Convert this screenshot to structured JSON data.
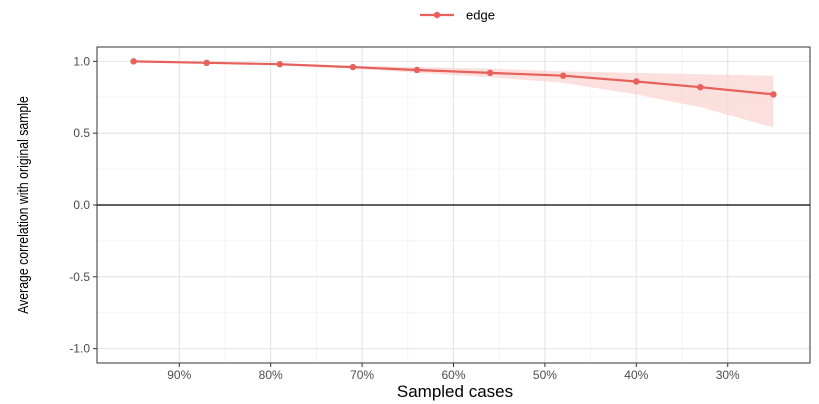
{
  "chart_data": {
    "type": "line",
    "xlabel": "Sampled cases",
    "ylabel": "Average correlation with original sample",
    "x_ticks": [
      "90%",
      "80%",
      "70%",
      "60%",
      "50%",
      "40%",
      "30%"
    ],
    "x_tick_values": [
      0.9,
      0.8,
      0.7,
      0.6,
      0.5,
      0.4,
      0.3
    ],
    "y_ticks": [
      "-1.0",
      "-0.5",
      "0.0",
      "0.5",
      "1.0"
    ],
    "y_tick_values": [
      -1.0,
      -0.5,
      0.0,
      0.5,
      1.0
    ],
    "xlim": [
      0.99,
      0.21
    ],
    "x_reversed": true,
    "ylim": [
      -1.1,
      1.1
    ],
    "reference_line_y": 0.0,
    "grid": true,
    "legend_position": "top",
    "series": [
      {
        "name": "edge",
        "color": "#e8605a",
        "band_color": "#fbd5d3",
        "x": [
          0.95,
          0.87,
          0.79,
          0.71,
          0.64,
          0.56,
          0.48,
          0.4,
          0.33,
          0.25
        ],
        "y": [
          1.0,
          0.99,
          0.98,
          0.96,
          0.94,
          0.92,
          0.9,
          0.86,
          0.82,
          0.77
        ],
        "lower": [
          1.0,
          0.99,
          0.97,
          0.95,
          0.92,
          0.89,
          0.85,
          0.77,
          0.68,
          0.54
        ],
        "upper": [
          1.0,
          0.99,
          0.98,
          0.97,
          0.96,
          0.95,
          0.93,
          0.92,
          0.91,
          0.9
        ]
      }
    ]
  }
}
